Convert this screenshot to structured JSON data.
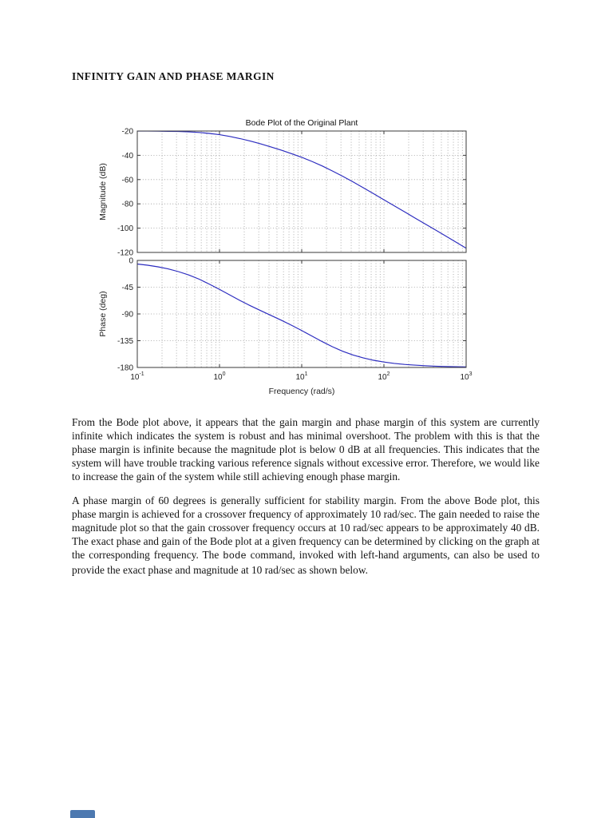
{
  "page": {
    "heading": "INFINITY GAIN AND PHASE MARGIN",
    "paragraph1": "From the Bode plot above, it appears that the gain margin and phase margin of this system are currently infinite which indicates the system is robust and has minimal overshoot. The problem with this is that the phase margin is infinite because the magnitude plot is below 0 dB at all frequencies. This indicates that the system will have trouble tracking various reference signals without excessive error. Therefore, we would like to increase the gain of the system while still achieving enough phase margin.",
    "paragraph2_part1": "A phase margin of 60 degrees is generally sufficient for stability margin. From the above Bode plot, this phase margin is achieved for a crossover frequency of approximately 10 rad/sec. The gain needed to raise the magnitude plot so that the gain crossover frequency occurs at 10 rad/sec appears to be approximately 40 dB. The exact phase and gain of the Bode plot at a given frequency can be determined by clicking on the graph at the corresponding frequency. The ",
    "paragraph2_code": "bode",
    "paragraph2_part2": " command, invoked with left-hand arguments, can also be used to provide the exact phase and magnitude at 10 rad/sec as shown below."
  },
  "chart_data": {
    "type": "line",
    "title": "Bode Plot of the Original Plant",
    "xlabel": "Frequency  (rad/s)",
    "x_scale": "log",
    "x_log10_range": [
      -1,
      3
    ],
    "x_tick_exponents": [
      -1,
      0,
      1,
      2,
      3
    ],
    "grid": true,
    "line_color": "#2b2bbf",
    "subplots": [
      {
        "ylabel": "Magnitude (dB)",
        "ylim": [
          -120,
          -20
        ],
        "yticks": [
          -20,
          -40,
          -60,
          -80,
          -100,
          -120
        ],
        "series": {
          "name": "magnitude",
          "color": "#2b2bbf",
          "x_log10": [
            -1,
            -0.875,
            -0.75,
            -0.625,
            -0.5,
            -0.375,
            -0.25,
            -0.125,
            0,
            0.125,
            0.25,
            0.375,
            0.5,
            0.625,
            0.75,
            0.875,
            1,
            1.125,
            1.25,
            1.375,
            1.5,
            1.625,
            1.75,
            1.875,
            2,
            2.125,
            2.25,
            2.375,
            2.5,
            2.625,
            2.75,
            2.875,
            3
          ],
          "y": [
            -20.04,
            -20.08,
            -20.14,
            -20.24,
            -20.42,
            -20.72,
            -21.2,
            -21.96,
            -23.03,
            -24.47,
            -26.25,
            -28.32,
            -30.6,
            -33.07,
            -35.72,
            -38.59,
            -41.64,
            -45.05,
            -48.83,
            -52.95,
            -57.36,
            -62.0,
            -66.78,
            -71.65,
            -76.62,
            -81.56,
            -86.52,
            -91.49,
            -96.49,
            -101.48,
            -106.48,
            -111.48,
            -116.52
          ]
        }
      },
      {
        "ylabel": "Phase (deg)",
        "ylim": [
          -180,
          0
        ],
        "yticks": [
          0,
          -45,
          -90,
          -135,
          -180
        ],
        "series": {
          "name": "phase",
          "color": "#2b2bbf",
          "x_log10": [
            -1,
            -0.875,
            -0.75,
            -0.625,
            -0.5,
            -0.375,
            -0.25,
            -0.125,
            0,
            0.125,
            0.25,
            0.375,
            0.5,
            0.625,
            0.75,
            0.875,
            1,
            1.125,
            1.25,
            1.375,
            1.5,
            1.625,
            1.75,
            1.875,
            2,
            2.125,
            2.25,
            2.375,
            2.5,
            2.625,
            2.75,
            2.875,
            3
          ],
          "y": [
            -6.09,
            -8.11,
            -10.76,
            -14.24,
            -18.76,
            -24.48,
            -31.49,
            -39.73,
            -48.81,
            -58.21,
            -67.41,
            -76.12,
            -84.35,
            -92.36,
            -100.47,
            -108.96,
            -117.98,
            -127.34,
            -136.65,
            -145.27,
            -152.81,
            -159.06,
            -164.04,
            -167.93,
            -170.9,
            -173.14,
            -174.85,
            -176.14,
            -177.1,
            -177.82,
            -178.37,
            -178.77,
            -179.08
          ]
        }
      }
    ]
  }
}
